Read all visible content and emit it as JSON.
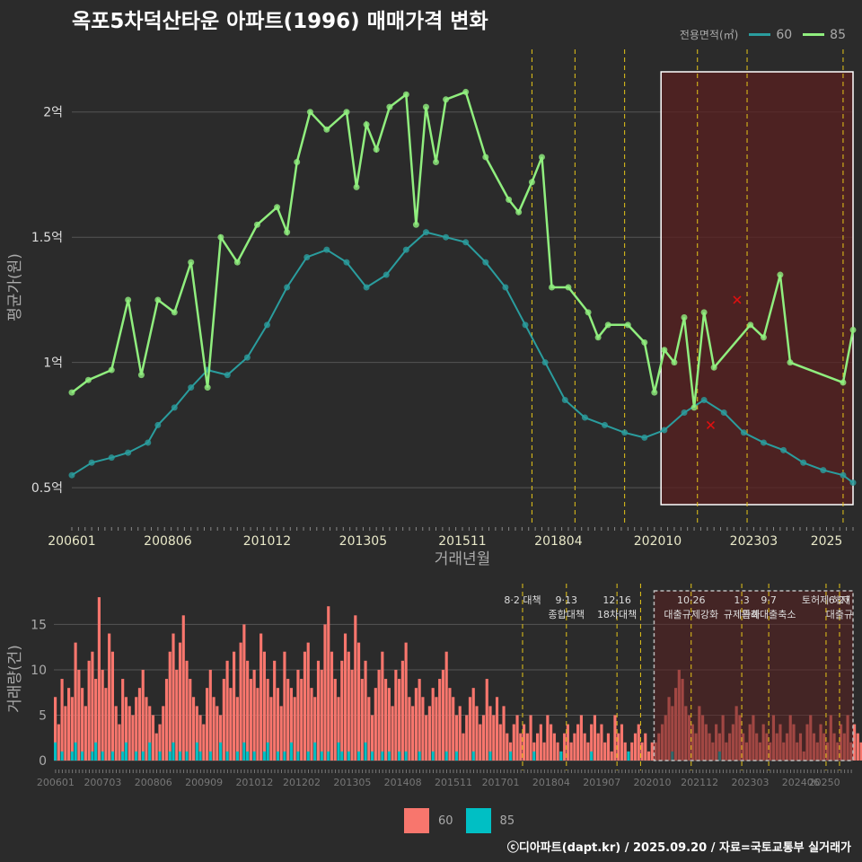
{
  "title": "옥포5차덕산타운 아파트(1996) 매매가격 변화",
  "footer": "ⓒ디아파트(dapt.kr) / 2025.09.20 / 자료=국토교통부 실거래가",
  "legend_top": {
    "title": "전용면적(㎡)",
    "items": [
      {
        "label": "60",
        "color": "#2a9d9e"
      },
      {
        "label": "85",
        "color": "#90ee7e"
      }
    ]
  },
  "legend_bottom": {
    "items": [
      {
        "label": "60",
        "color": "#f8766d"
      },
      {
        "label": "85",
        "color": "#00bfc4"
      }
    ]
  },
  "colors": {
    "background": "#2b2b2b",
    "grid": "#555555",
    "line60": "#2a9d9e",
    "line85": "#90ee7e",
    "bar60": "#f8766d",
    "bar85": "#00bfc4",
    "highlight_fill": "#5a2020",
    "policy_line": "#e6c619",
    "outlier_marker": "#e01010"
  },
  "chart_data": [
    {
      "type": "line",
      "xlabel": "거래년월",
      "ylabel": "평균가(원)",
      "x_range": [
        "2006-01",
        "2025-09"
      ],
      "x_ticks": [
        "200601",
        "200806",
        "201012",
        "201305",
        "201511",
        "201804",
        "202010",
        "202303",
        "2025"
      ],
      "y_ticks": [
        {
          "value": 0.5,
          "label": "0.5억"
        },
        {
          "value": 1.0,
          "label": "1억"
        },
        {
          "value": 1.5,
          "label": "1.5억"
        },
        {
          "value": 2.0,
          "label": "2억"
        }
      ],
      "ylim": [
        0.35,
        2.25
      ],
      "y_unit": "억 원",
      "series": [
        {
          "name": "60",
          "points": [
            [
              "2006-01",
              0.55
            ],
            [
              "2006-07",
              0.6
            ],
            [
              "2007-01",
              0.62
            ],
            [
              "2007-06",
              0.64
            ],
            [
              "2007-12",
              0.68
            ],
            [
              "2008-03",
              0.75
            ],
            [
              "2008-08",
              0.82
            ],
            [
              "2009-01",
              0.9
            ],
            [
              "2009-06",
              0.97
            ],
            [
              "2009-12",
              0.95
            ],
            [
              "2010-06",
              1.02
            ],
            [
              "2010-12",
              1.15
            ],
            [
              "2011-06",
              1.3
            ],
            [
              "2011-12",
              1.42
            ],
            [
              "2012-06",
              1.45
            ],
            [
              "2012-12",
              1.4
            ],
            [
              "2013-06",
              1.3
            ],
            [
              "2013-12",
              1.35
            ],
            [
              "2014-06",
              1.45
            ],
            [
              "2014-12",
              1.52
            ],
            [
              "2015-06",
              1.5
            ],
            [
              "2015-12",
              1.48
            ],
            [
              "2016-06",
              1.4
            ],
            [
              "2016-12",
              1.3
            ],
            [
              "2017-06",
              1.15
            ],
            [
              "2017-12",
              1.0
            ],
            [
              "2018-06",
              0.85
            ],
            [
              "2018-12",
              0.78
            ],
            [
              "2019-06",
              0.75
            ],
            [
              "2019-12",
              0.72
            ],
            [
              "2020-06",
              0.7
            ],
            [
              "2020-12",
              0.73
            ],
            [
              "2021-06",
              0.8
            ],
            [
              "2021-12",
              0.85
            ],
            [
              "2022-06",
              0.8
            ],
            [
              "2022-12",
              0.72
            ],
            [
              "2023-06",
              0.68
            ],
            [
              "2023-12",
              0.65
            ],
            [
              "2024-06",
              0.6
            ],
            [
              "2024-12",
              0.57
            ],
            [
              "2025-06",
              0.55
            ],
            [
              "2025-09",
              0.52
            ]
          ]
        },
        {
          "name": "85",
          "points": [
            [
              "2006-01",
              0.88
            ],
            [
              "2006-06",
              0.93
            ],
            [
              "2007-01",
              0.97
            ],
            [
              "2007-06",
              1.25
            ],
            [
              "2007-10",
              0.95
            ],
            [
              "2008-03",
              1.25
            ],
            [
              "2008-08",
              1.2
            ],
            [
              "2009-01",
              1.4
            ],
            [
              "2009-06",
              0.9
            ],
            [
              "2009-10",
              1.5
            ],
            [
              "2010-03",
              1.4
            ],
            [
              "2010-09",
              1.55
            ],
            [
              "2011-03",
              1.62
            ],
            [
              "2011-06",
              1.52
            ],
            [
              "2011-09",
              1.8
            ],
            [
              "2012-01",
              2.0
            ],
            [
              "2012-06",
              1.93
            ],
            [
              "2012-12",
              2.0
            ],
            [
              "2013-03",
              1.7
            ],
            [
              "2013-06",
              1.95
            ],
            [
              "2013-09",
              1.85
            ],
            [
              "2014-01",
              2.02
            ],
            [
              "2014-06",
              2.07
            ],
            [
              "2014-09",
              1.55
            ],
            [
              "2014-12",
              2.02
            ],
            [
              "2015-03",
              1.8
            ],
            [
              "2015-06",
              2.05
            ],
            [
              "2015-12",
              2.08
            ],
            [
              "2016-06",
              1.82
            ],
            [
              "2017-01",
              1.65
            ],
            [
              "2017-04",
              1.6
            ],
            [
              "2017-08",
              1.72
            ],
            [
              "2017-11",
              1.82
            ],
            [
              "2018-02",
              1.3
            ],
            [
              "2018-07",
              1.3
            ],
            [
              "2019-01",
              1.2
            ],
            [
              "2019-04",
              1.1
            ],
            [
              "2019-07",
              1.15
            ],
            [
              "2020-01",
              1.15
            ],
            [
              "2020-06",
              1.08
            ],
            [
              "2020-09",
              0.88
            ],
            [
              "2020-12",
              1.05
            ],
            [
              "2021-03",
              1.0
            ],
            [
              "2021-06",
              1.18
            ],
            [
              "2021-09",
              0.82
            ],
            [
              "2021-12",
              1.2
            ],
            [
              "2022-03",
              0.98
            ],
            [
              "2023-02",
              1.15
            ],
            [
              "2023-06",
              1.1
            ],
            [
              "2023-11",
              1.35
            ],
            [
              "2024-02",
              1.0
            ],
            [
              "2025-06",
              0.92
            ],
            [
              "2025-09",
              1.13
            ]
          ]
        }
      ],
      "outliers": [
        {
          "x": "2022-10",
          "y": 1.25
        },
        {
          "x": "2022-02",
          "y": 0.75
        }
      ],
      "highlight_range": [
        "2020-11",
        "2025-09"
      ],
      "policy_lines": [
        "2017-08",
        "2018-09",
        "2019-12",
        "2021-10",
        "2023-01",
        "2025-06"
      ]
    },
    {
      "type": "bar",
      "xlabel": "",
      "ylabel": "거래량(건)",
      "x_range": [
        "2006-01",
        "2025-09"
      ],
      "x_ticks": [
        "200601",
        "200703",
        "200806",
        "200909",
        "201012",
        "201202",
        "201305",
        "201408",
        "201511",
        "201701",
        "201804",
        "201907",
        "202010",
        "202112",
        "202303",
        "202406",
        "20250"
      ],
      "y_ticks": [
        0,
        5,
        10,
        15
      ],
      "ylim": [
        0,
        19
      ],
      "series": [
        {
          "name": "60",
          "values": [
            7,
            4,
            9,
            6,
            8,
            7,
            13,
            10,
            8,
            6,
            11,
            12,
            9,
            18,
            10,
            8,
            14,
            12,
            6,
            4,
            9,
            7,
            6,
            5,
            7,
            8,
            10,
            7,
            6,
            5,
            3,
            4,
            6,
            9,
            12,
            14,
            10,
            13,
            16,
            11,
            9,
            7,
            6,
            5,
            4,
            8,
            10,
            7,
            6,
            5,
            9,
            11,
            8,
            12,
            7,
            13,
            15,
            11,
            9,
            10,
            8,
            14,
            12,
            9,
            7,
            11,
            8,
            6,
            12,
            9,
            8,
            7,
            10,
            9,
            12,
            13,
            8,
            7,
            11,
            10,
            15,
            17,
            12,
            9,
            7,
            11,
            14,
            12,
            10,
            16,
            13,
            9,
            11,
            7,
            5,
            8,
            10,
            12,
            9,
            8,
            6,
            10,
            9,
            11,
            13,
            7,
            6,
            8,
            9,
            7,
            5,
            6,
            8,
            7,
            9,
            10,
            12,
            8,
            7,
            5,
            6,
            3,
            5,
            7,
            8,
            6,
            4,
            5,
            9,
            6,
            5,
            7,
            4,
            6,
            3,
            2,
            4,
            5,
            3,
            4,
            3,
            5,
            2,
            3,
            4,
            2,
            5,
            4,
            3,
            2,
            1,
            3,
            4,
            2,
            3,
            4,
            5,
            3,
            2,
            4,
            5,
            3,
            4,
            2,
            3,
            1,
            5,
            3,
            4,
            2,
            1,
            2,
            3,
            4,
            2,
            3,
            1,
            2,
            2,
            3,
            4,
            5,
            7,
            6,
            8,
            10,
            9,
            6,
            5,
            4,
            3,
            6,
            5,
            4,
            3,
            2,
            4,
            3,
            5,
            2,
            3,
            4,
            6,
            5,
            3,
            2,
            4,
            5,
            3,
            2,
            4,
            3,
            2,
            5,
            3,
            4,
            2,
            3,
            5,
            4,
            2,
            3,
            1,
            4,
            5,
            3,
            2,
            4,
            3,
            2,
            5,
            3,
            2,
            4,
            3,
            5,
            2,
            4,
            3,
            2
          ]
        },
        {
          "name": "85",
          "values": [
            2,
            0,
            1,
            0,
            0,
            1,
            2,
            0,
            1,
            0,
            0,
            1,
            2,
            0,
            1,
            0,
            0,
            1,
            0,
            0,
            1,
            2,
            0,
            0,
            1,
            0,
            1,
            0,
            2,
            0,
            0,
            1,
            0,
            0,
            1,
            2,
            0,
            1,
            0,
            1,
            0,
            0,
            2,
            1,
            0,
            0,
            1,
            0,
            0,
            2,
            0,
            1,
            0,
            0,
            1,
            0,
            2,
            1,
            0,
            1,
            0,
            0,
            1,
            2,
            0,
            0,
            1,
            0,
            1,
            0,
            2,
            0,
            1,
            0,
            0,
            1,
            0,
            2,
            0,
            1,
            0,
            1,
            0,
            0,
            2,
            1,
            0,
            1,
            0,
            0,
            1,
            0,
            2,
            0,
            1,
            0,
            0,
            1,
            0,
            1,
            0,
            0,
            1,
            0,
            1,
            0,
            0,
            0,
            1,
            0,
            0,
            0,
            1,
            0,
            0,
            0,
            1,
            0,
            0,
            1,
            0,
            0,
            0,
            0,
            1,
            0,
            0,
            0,
            0,
            1,
            0,
            0,
            0,
            0,
            0,
            1,
            0,
            0,
            0,
            0,
            0,
            0,
            1,
            0,
            0,
            0,
            0,
            0,
            0,
            0,
            1,
            0,
            0,
            0,
            0,
            0,
            0,
            0,
            0,
            1,
            0,
            0,
            0,
            0,
            0,
            0,
            0,
            0,
            0,
            0,
            1,
            0,
            0,
            0,
            0,
            0,
            0,
            0,
            0,
            0,
            0,
            0,
            0,
            1,
            0,
            0,
            0,
            0,
            0,
            0,
            0,
            0,
            0,
            0,
            0,
            0,
            0,
            1,
            0,
            0,
            0,
            0,
            0,
            0,
            0,
            0,
            0,
            0,
            0,
            0,
            0,
            0,
            0,
            0,
            0,
            0,
            0,
            0,
            0,
            0,
            0,
            0,
            0,
            0,
            0,
            0,
            0,
            0,
            0,
            0,
            0,
            0,
            0,
            0,
            0,
            0
          ]
        }
      ],
      "highlight_range": [
        "2020-11",
        "2025-09"
      ],
      "policy_events": [
        {
          "x": "2017-08",
          "lines": [
            "8·2 대책"
          ]
        },
        {
          "x": "2018-09",
          "lines": [
            "9·13",
            "종합대책"
          ]
        },
        {
          "x": "2019-12",
          "lines": [
            "12·16",
            "18차대책"
          ]
        },
        {
          "x": "2020-07",
          "lines": []
        },
        {
          "x": "2021-10",
          "lines": [
            "10·26",
            "대출규제강화"
          ]
        },
        {
          "x": "2023-01",
          "lines": [
            "1·3",
            "규제완화"
          ]
        },
        {
          "x": "2023-09",
          "lines": [
            "9·7",
            "특례대출축소"
          ]
        },
        {
          "x": "2025-02",
          "lines": [
            "토허제 해제"
          ]
        },
        {
          "x": "2025-06",
          "lines": [
            "6·27",
            "대출규"
          ]
        }
      ]
    }
  ]
}
